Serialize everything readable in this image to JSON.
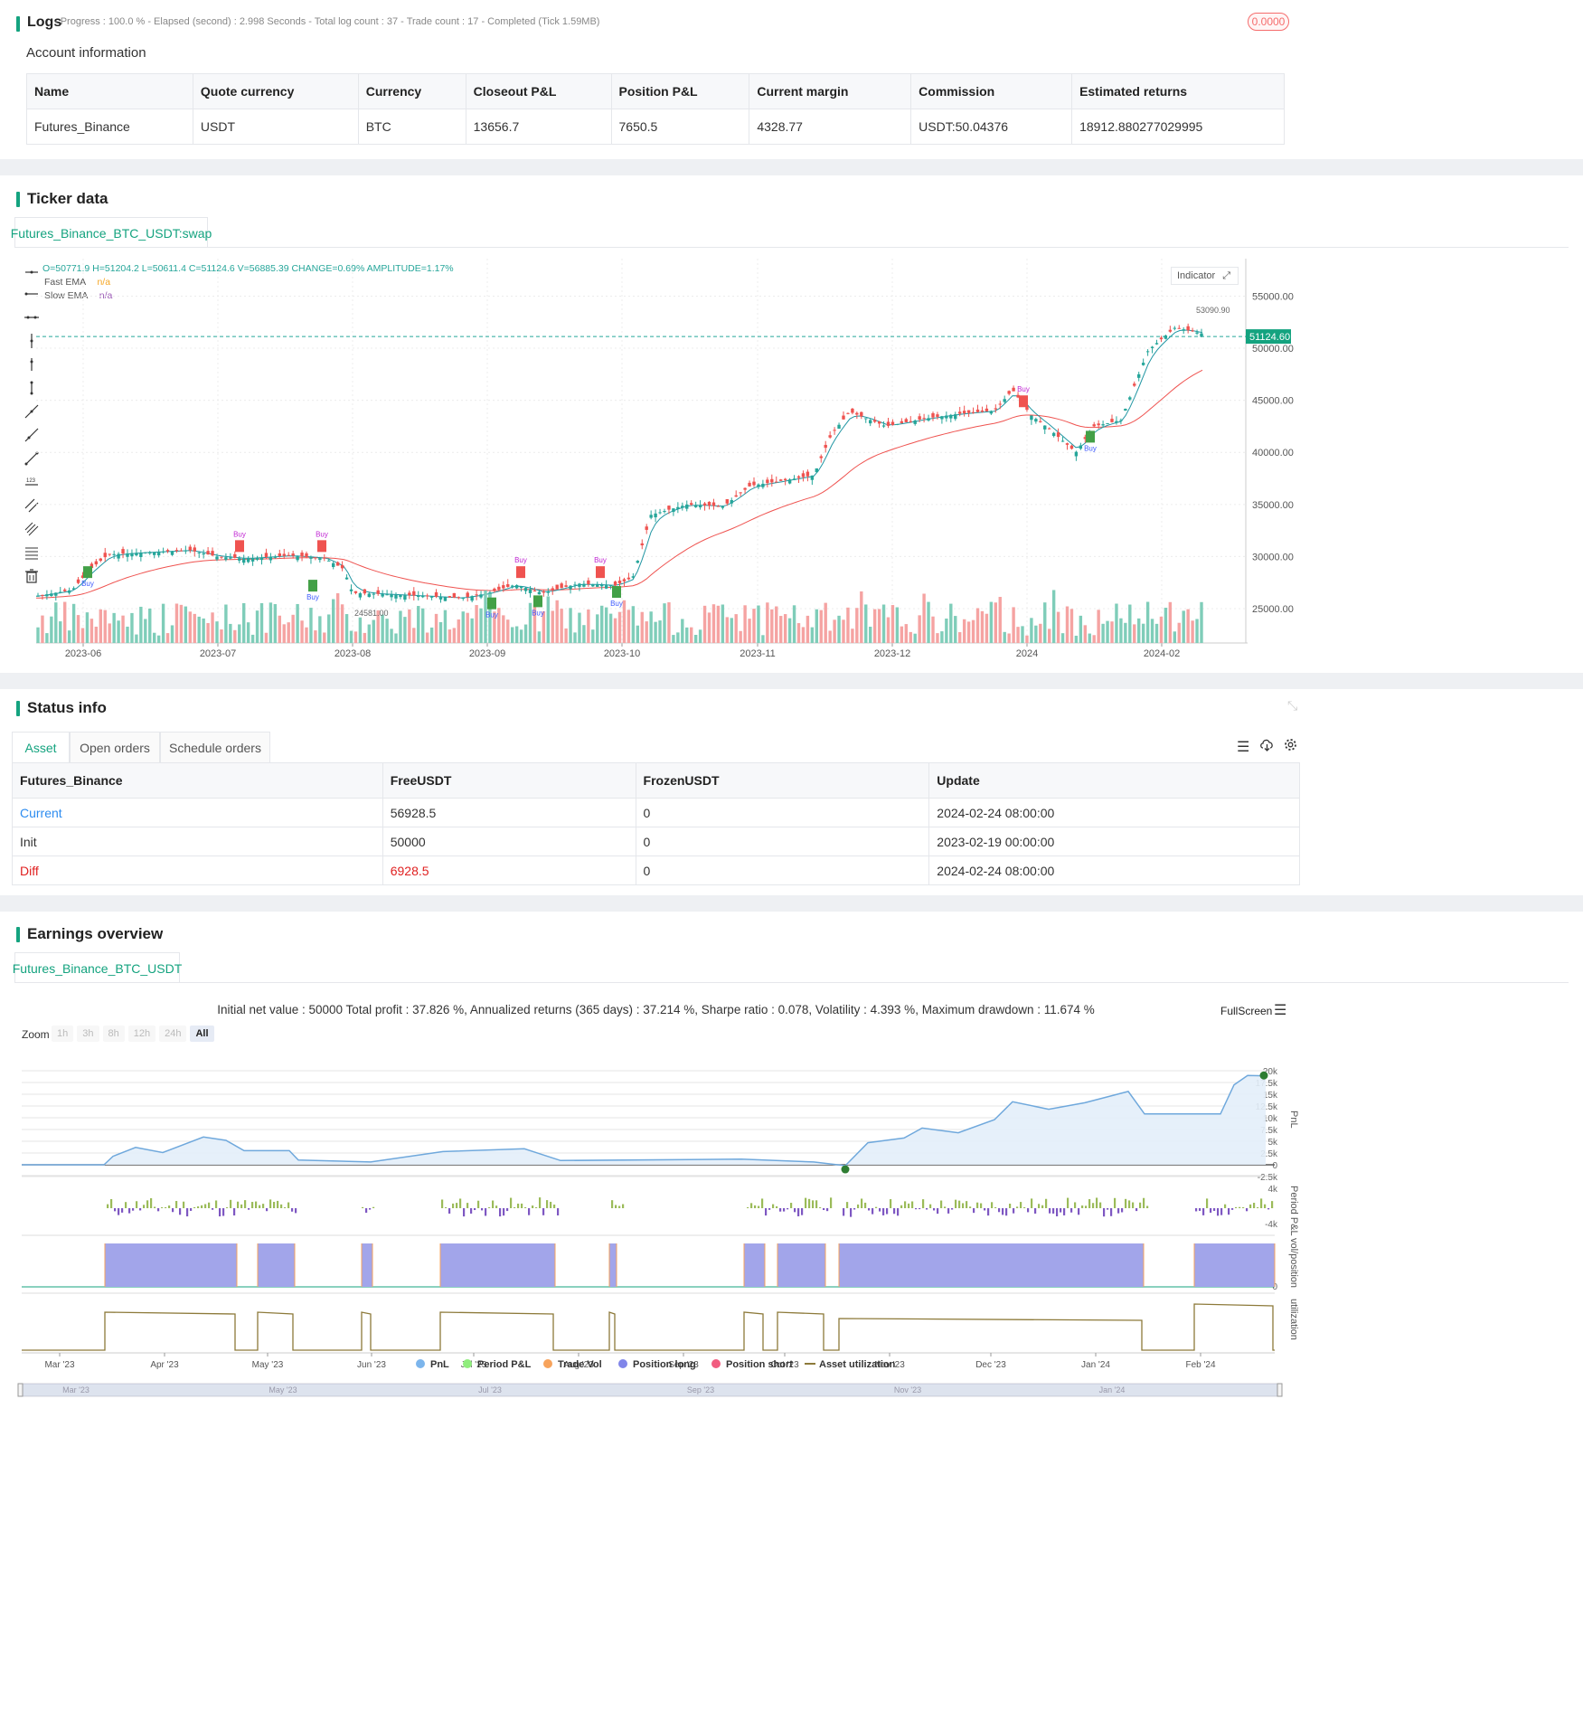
{
  "logs": {
    "title": "Logs",
    "status_line": "- Progress : 100.0 % - Elapsed (second) : 2.998  Seconds - Total log count : 37 - Trade count : 17 - Completed (Tick 1.59MB)",
    "badge": "0.0000"
  },
  "account": {
    "title": "Account information",
    "columns": [
      "Name",
      "Quote currency",
      "Currency",
      "Closeout P&L",
      "Position P&L",
      "Current margin",
      "Commission",
      "Estimated returns"
    ],
    "row": [
      "Futures_Binance",
      "USDT",
      "BTC",
      "13656.7",
      "7650.5",
      "4328.77",
      "USDT:50.04376",
      "18912.880277029995"
    ]
  },
  "ticker": {
    "title": "Ticker data",
    "tab": "Futures_Binance_BTC_USDT:swap",
    "ohlc": "O=50771.9 H=51204.2 L=50611.4 C=51124.6 V=56885.39 CHANGE=0.69% AMPLITUDE=1.17%",
    "legend": [
      {
        "name": "Fast EMA",
        "value": "n/a",
        "color": "#f5a623"
      },
      {
        "name": "Slow EMA",
        "value": "n/a",
        "color": "#9b59b6"
      }
    ],
    "indicator_button": "Indicator",
    "price_tag": "51124.60",
    "high_label": "53090.90",
    "low_label": "24581.00",
    "y_ticks": [
      "55000.00",
      "50000.00",
      "45000.00",
      "40000.00",
      "35000.00",
      "30000.00",
      "25000.00"
    ],
    "x_ticks": [
      "2023-06",
      "2023-07",
      "2023-08",
      "2023-09",
      "2023-10",
      "2023-11",
      "2023-12",
      "2024",
      "2024-02"
    ],
    "colors": {
      "up": "#26a69a",
      "down": "#ef5350",
      "slow_ema": "#ef5350",
      "fast_ema": "#2196a3"
    }
  },
  "status": {
    "title": "Status info",
    "tabs": [
      "Asset",
      "Open orders",
      "Schedule orders"
    ],
    "columns": [
      "Futures_Binance",
      "FreeUSDT",
      "FrozenUSDT",
      "Update"
    ],
    "rows": [
      [
        "Current",
        "56928.5",
        "0",
        "2024-02-24 08:00:00"
      ],
      [
        "Init",
        "50000",
        "0",
        "2023-02-19 00:00:00"
      ],
      [
        "Diff",
        "6928.5",
        "0",
        "2024-02-24 08:00:00"
      ]
    ]
  },
  "earnings": {
    "title": "Earnings overview",
    "tab": "Futures_Binance_BTC_USDT",
    "summary": "Initial net value : 50000 Total profit : 37.826 %, Annualized returns (365 days) : 37.214 %, Sharpe ratio : 0.078, Volatility : 4.393 %, Maximum drawdown : 11.674 %",
    "fullscreen": "FullScreen",
    "zoom_label": "Zoom",
    "zoom_options": [
      "1h",
      "3h",
      "8h",
      "12h",
      "24h",
      "All"
    ],
    "pnl_ticks": [
      "20k",
      "17.5k",
      "15k",
      "12.5k",
      "10k",
      "7.5k",
      "5k",
      "2.5k",
      "0",
      "-2.5k"
    ],
    "axis_titles": [
      "PnL",
      "Period P&L",
      "vol/position",
      "utilization"
    ],
    "period_ticks": [
      "4k",
      "-4k"
    ],
    "vol_tick": "0",
    "x_ticks": [
      "Mar '23",
      "Apr '23",
      "May '23",
      "Jun '23",
      "Jul '23",
      "Aug '23",
      "Sep '23",
      "Oct '23",
      "Nov '23",
      "Dec '23",
      "Jan '24",
      "Feb '24"
    ],
    "nav_ticks": [
      "Mar '23",
      "May '23",
      "Jul '23",
      "Sep '23",
      "Nov '23",
      "Jan '24"
    ],
    "legend": [
      {
        "name": "PnL",
        "color": "#7cb5ec"
      },
      {
        "name": "Period P&L",
        "color": "#90ed7d"
      },
      {
        "name": "Trade Vol",
        "color": "#f7a35c"
      },
      {
        "name": "Position long",
        "color": "#8085e9"
      },
      {
        "name": "Position short",
        "color": "#f15c80"
      },
      {
        "name": "Asset utilization",
        "color": "#8d7a3a"
      }
    ]
  }
}
